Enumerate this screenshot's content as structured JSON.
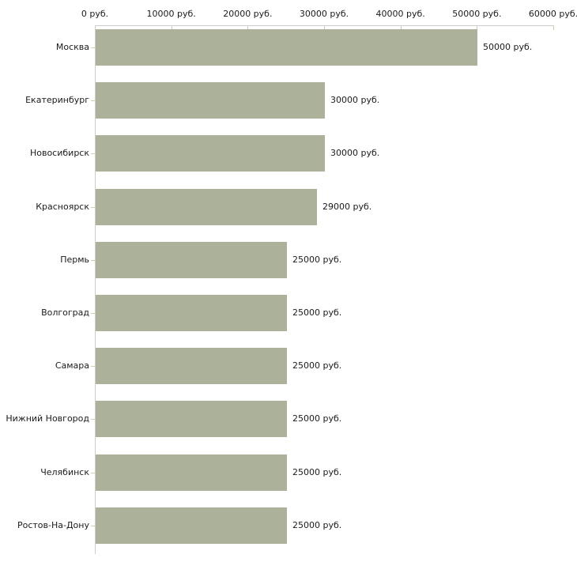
{
  "chart_data": {
    "type": "bar",
    "orientation": "horizontal",
    "title": "",
    "xlabel": "",
    "ylabel": "",
    "categories": [
      "Москва",
      "Екатеринбург",
      "Новосибирск",
      "Красноярск",
      "Пермь",
      "Волгоград",
      "Самара",
      "Нижний Новгород",
      "Челябинск",
      "Ростов-На-Дону"
    ],
    "values": [
      50000,
      30000,
      30000,
      29000,
      25000,
      25000,
      25000,
      25000,
      25000,
      25000
    ],
    "value_labels": [
      "50000 руб.",
      "30000 руб.",
      "30000 руб.",
      "29000 руб.",
      "25000 руб.",
      "25000 руб.",
      "25000 руб.",
      "25000 руб.",
      "25000 руб.",
      "25000 руб."
    ],
    "x_axis": {
      "position": "top",
      "min": 0,
      "max": 60000,
      "tick_values": [
        0,
        10000,
        20000,
        30000,
        40000,
        50000,
        60000
      ],
      "tick_labels": [
        "0 руб.",
        "10000 руб.",
        "20000 руб.",
        "30000 руб.",
        "40000 руб.",
        "50000 руб.",
        "60000 руб."
      ]
    },
    "grid": false,
    "legend": false,
    "colors": {
      "bar_fill": "#acb299",
      "axis_line": "#cccccc",
      "tick_mark": "#ccd1ad",
      "text": "#1b1b1b",
      "background": "#ffffff"
    }
  }
}
